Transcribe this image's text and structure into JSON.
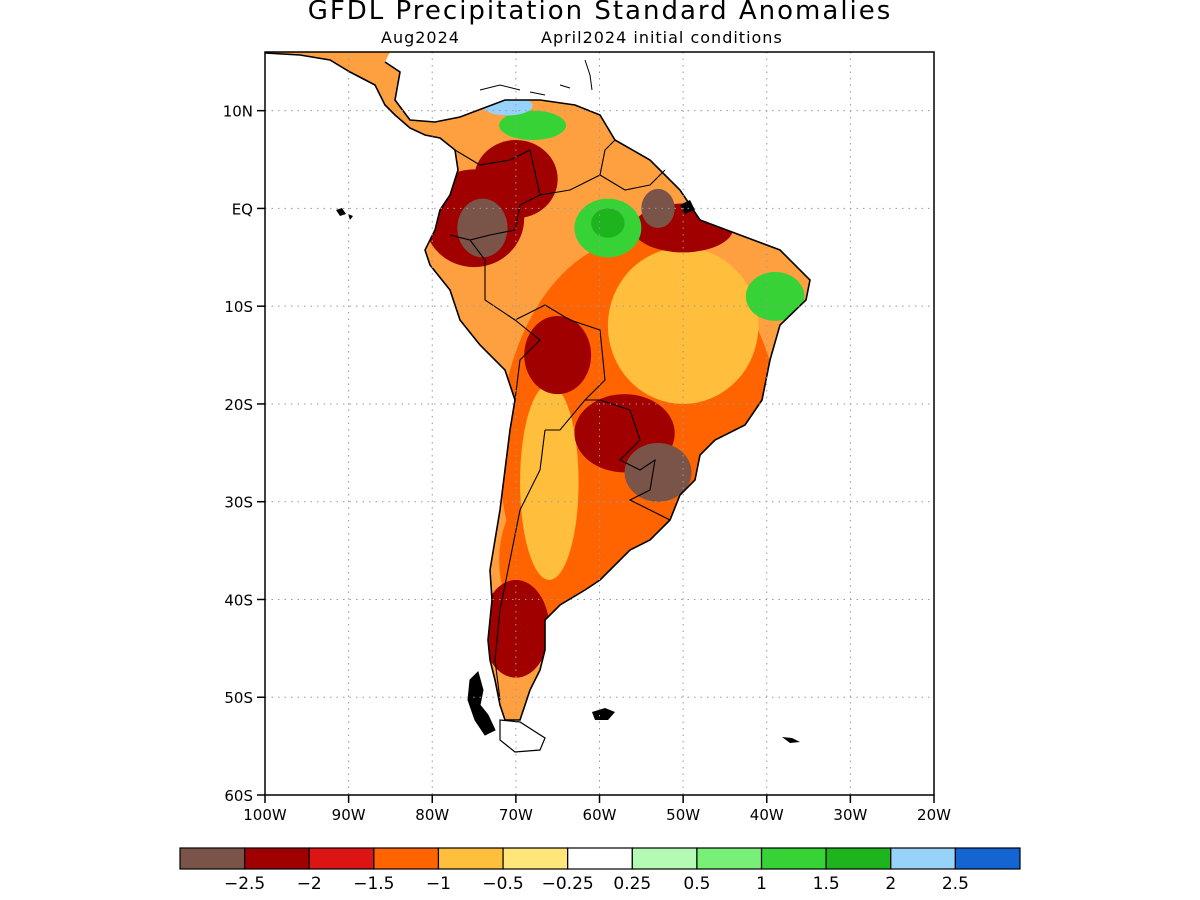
{
  "title": "GFDL Precipitation Standard Anomalies",
  "subtitle_left": "Aug2024",
  "subtitle_right": "April2024 initial conditions",
  "lat_labels": [
    "10N",
    "EQ",
    "10S",
    "20S",
    "30S",
    "40S",
    "50S",
    "60S"
  ],
  "lat_values": [
    10,
    0,
    -10,
    -20,
    -30,
    -40,
    -50,
    -60
  ],
  "lon_labels": [
    "100W",
    "90W",
    "80W",
    "70W",
    "60W",
    "50W",
    "40W",
    "30W",
    "20W"
  ],
  "lon_values": [
    -100,
    -90,
    -80,
    -70,
    -60,
    -50,
    -40,
    -30,
    -20
  ],
  "extent": {
    "lon_min": -100,
    "lon_max": -20,
    "lat_min": -60,
    "lat_max": 16
  },
  "colorbar": {
    "colors": [
      "#7a5448",
      "#a00000",
      "#dc1414",
      "#ff6400",
      "#ffbe3c",
      "#ffe678",
      "#ffffff",
      "#b4fab4",
      "#78f078",
      "#36d236",
      "#1eb41e",
      "#96d2fa",
      "#1464d2"
    ],
    "labels": [
      "−2.5",
      "−2",
      "−1.5",
      "−1",
      "−0.5",
      "−0.25",
      "0.25",
      "0.5",
      "1",
      "1.5",
      "2",
      "2.5"
    ]
  },
  "anomaly_regions": [
    {
      "level": "−1",
      "lon": -55,
      "lat": -25,
      "rx": 17,
      "ry": 22
    },
    {
      "level": "−1",
      "lon": -62,
      "lat": -36,
      "rx": 10,
      "ry": 10
    },
    {
      "level": "−0.5",
      "lon": -50,
      "lat": -12,
      "rx": 9,
      "ry": 8
    },
    {
      "level": "−0.5",
      "lon": -66,
      "lat": -28,
      "rx": 3.5,
      "ry": 10
    },
    {
      "level": "−2",
      "lon": -75,
      "lat": -1,
      "rx": 6,
      "ry": 5
    },
    {
      "level": "−2",
      "lon": -70,
      "lat": 3,
      "rx": 5,
      "ry": 4
    },
    {
      "level": "−2",
      "lon": -65,
      "lat": -15,
      "rx": 4,
      "ry": 4
    },
    {
      "level": "−2",
      "lon": -57,
      "lat": -23,
      "rx": 6,
      "ry": 4
    },
    {
      "level": "−2",
      "lon": -50,
      "lat": -2,
      "rx": 6,
      "ry": 2.5
    },
    {
      "level": "−2",
      "lon": -70,
      "lat": -43,
      "rx": 4,
      "ry": 5
    },
    {
      "level": "−2.5",
      "lon": -74,
      "lat": -2,
      "rx": 3,
      "ry": 3
    },
    {
      "level": "−2.5",
      "lon": -53,
      "lat": -27,
      "rx": 4,
      "ry": 3
    },
    {
      "level": "−2.5",
      "lon": -53,
      "lat": 0,
      "rx": 2,
      "ry": 2
    },
    {
      "level": "1",
      "lon": -59,
      "lat": -2,
      "rx": 4,
      "ry": 3
    },
    {
      "level": "1.5",
      "lon": -59,
      "lat": -1.5,
      "rx": 2,
      "ry": 1.5
    },
    {
      "level": "1",
      "lon": -39,
      "lat": -9,
      "rx": 3.5,
      "ry": 2.5
    },
    {
      "level": "1",
      "lon": -68,
      "lat": 8.5,
      "rx": 4,
      "ry": 1.5
    },
    {
      "level": "2",
      "lon": -71,
      "lat": 10.5,
      "rx": 3,
      "ry": 1
    }
  ]
}
